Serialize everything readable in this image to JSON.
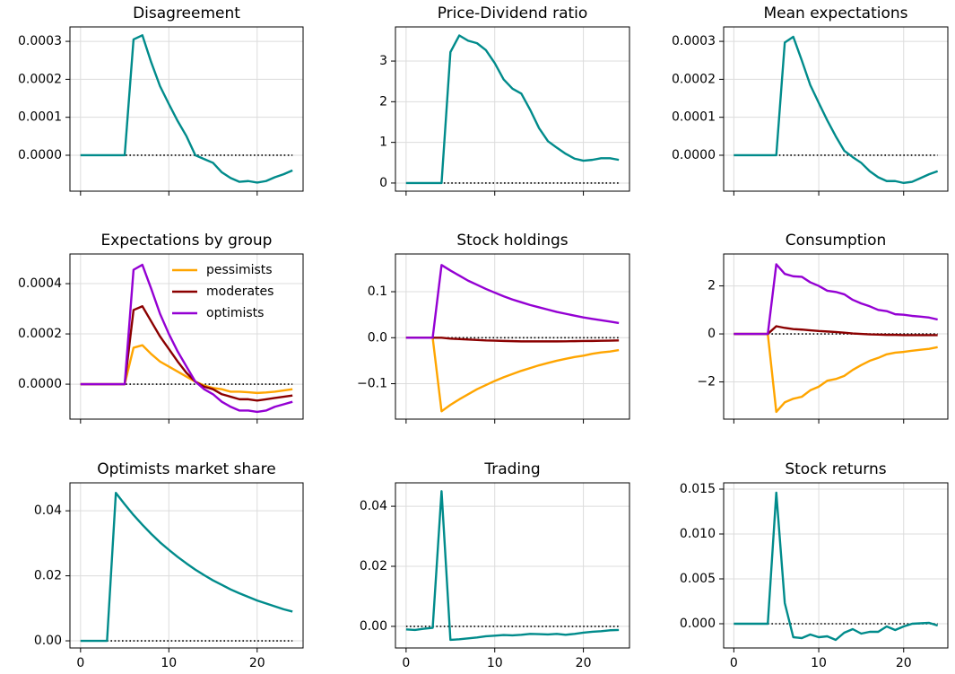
{
  "chart_data": [
    {
      "type": "line",
      "title": "Disagreement",
      "x": [
        0,
        1,
        2,
        3,
        4,
        5,
        6,
        7,
        8,
        9,
        10,
        11,
        12,
        13,
        14,
        15,
        16,
        17,
        18,
        19,
        20,
        21,
        22,
        23,
        24
      ],
      "values": [
        0,
        0,
        0,
        0,
        0,
        0,
        0.000305,
        0.000316,
        0.000245,
        0.000182,
        0.000135,
        9e-05,
        5e-05,
        0.0,
        -1e-05,
        -2e-05,
        -4.5e-05,
        -6e-05,
        -7e-05,
        -6.8e-05,
        -7.2e-05,
        -6.8e-05,
        -5.8e-05,
        -5e-05,
        -4e-05
      ],
      "color": "#008b8b",
      "xlim": [
        -1.2,
        25.2
      ],
      "xticks": [
        0,
        10,
        20
      ],
      "show_xtick_labels": false,
      "ylim": [
        -9.46e-05,
        0.000338
      ],
      "yticks": [
        {
          "value": 0,
          "label": "0.0000"
        },
        0.0001,
        0.0002,
        0.0003
      ],
      "grid": true,
      "zero_line": true
    },
    {
      "type": "line",
      "title": "Price-Dividend ratio",
      "x": [
        0,
        1,
        2,
        3,
        4,
        5,
        6,
        7,
        8,
        9,
        10,
        11,
        12,
        13,
        14,
        15,
        16,
        17,
        18,
        19,
        20,
        21,
        22,
        23,
        24
      ],
      "values": [
        0,
        0,
        0,
        0,
        0,
        3.22,
        3.63,
        3.5,
        3.44,
        3.27,
        2.95,
        2.55,
        2.32,
        2.2,
        1.8,
        1.35,
        1.03,
        0.87,
        0.72,
        0.6,
        0.55,
        0.57,
        0.61,
        0.61,
        0.57
      ],
      "color": "#008b8b",
      "xlim": [
        -1.2,
        25.2
      ],
      "xticks": [
        0,
        10,
        20
      ],
      "show_xtick_labels": false,
      "ylim": [
        -0.2,
        3.84
      ],
      "yticks": [
        0,
        1,
        2,
        3
      ],
      "grid": true,
      "zero_line": true
    },
    {
      "type": "line",
      "title": "Mean expectations",
      "x": [
        0,
        1,
        2,
        3,
        4,
        5,
        6,
        7,
        8,
        9,
        10,
        11,
        12,
        13,
        14,
        15,
        16,
        17,
        18,
        19,
        20,
        21,
        22,
        23,
        24
      ],
      "values": [
        0,
        0,
        0,
        0,
        0,
        0,
        0.000297,
        0.000312,
        0.00025,
        0.000185,
        0.000138,
        9.2e-05,
        5e-05,
        1.2e-05,
        -5e-06,
        -2e-05,
        -4.2e-05,
        -5.8e-05,
        -6.8e-05,
        -6.8e-05,
        -7.3e-05,
        -7e-05,
        -6e-05,
        -5e-05,
        -4.2e-05
      ],
      "color": "#008b8b",
      "xlim": [
        -1.2,
        25.2
      ],
      "xticks": [
        0,
        10,
        20
      ],
      "show_xtick_labels": false,
      "ylim": [
        -9.46e-05,
        0.000338
      ],
      "yticks": [
        {
          "value": 0,
          "label": "0.0000"
        },
        0.0001,
        0.0002,
        0.0003
      ],
      "grid": true,
      "zero_line": true
    },
    {
      "type": "line",
      "title": "Expectations by group",
      "x": [
        0,
        1,
        2,
        3,
        4,
        5,
        6,
        7,
        8,
        9,
        10,
        11,
        12,
        13,
        14,
        15,
        16,
        17,
        18,
        19,
        20,
        21,
        22,
        23,
        24
      ],
      "series": [
        {
          "name": "pessimists",
          "color": "#ffa500",
          "values": [
            0,
            0,
            0,
            0,
            0,
            0,
            0.000145,
            0.000155,
            0.00012,
            9e-05,
            7e-05,
            5e-05,
            3e-05,
            1e-05,
            -5e-06,
            -1.5e-05,
            -2e-05,
            -3e-05,
            -3e-05,
            -3.2e-05,
            -3.5e-05,
            -3.3e-05,
            -3e-05,
            -2.5e-05,
            -2e-05
          ]
        },
        {
          "name": "moderates",
          "color": "#8b0000",
          "values": [
            0,
            0,
            0,
            0,
            0,
            0,
            0.000295,
            0.00031,
            0.00025,
            0.00019,
            0.00014,
            9e-05,
            4.5e-05,
            1e-05,
            -1e-05,
            -2e-05,
            -4e-05,
            -5e-05,
            -6e-05,
            -6e-05,
            -6.5e-05,
            -6e-05,
            -5.5e-05,
            -5e-05,
            -4.5e-05
          ]
        },
        {
          "name": "optimists",
          "color": "#9400d3",
          "values": [
            0,
            0,
            0,
            0,
            0,
            0,
            0.000455,
            0.000475,
            0.00038,
            0.00028,
            0.0002,
            0.00013,
            7e-05,
            1e-05,
            -2e-05,
            -4e-05,
            -7e-05,
            -9e-05,
            -0.000105,
            -0.000105,
            -0.00011,
            -0.000105,
            -9e-05,
            -8e-05,
            -7e-05
          ]
        }
      ],
      "legend": "upper right",
      "xlim": [
        -1.2,
        25.2
      ],
      "xticks": [
        0,
        10,
        20
      ],
      "show_xtick_labels": false,
      "ylim": [
        -0.000139,
        0.000518
      ],
      "yticks": [
        {
          "value": 0,
          "label": "0.0000"
        },
        0.0002,
        0.0004
      ],
      "grid": true,
      "zero_line": true
    },
    {
      "type": "line",
      "title": "Stock holdings",
      "x": [
        0,
        1,
        2,
        3,
        4,
        5,
        6,
        7,
        8,
        9,
        10,
        11,
        12,
        13,
        14,
        15,
        16,
        17,
        18,
        19,
        20,
        21,
        22,
        23,
        24
      ],
      "series": [
        {
          "color": "#ffa500",
          "values": [
            0,
            0,
            0,
            0,
            -0.16,
            -0.146,
            -0.134,
            -0.123,
            -0.112,
            -0.103,
            -0.094,
            -0.086,
            -0.079,
            -0.072,
            -0.066,
            -0.06,
            -0.055,
            -0.05,
            -0.046,
            -0.042,
            -0.039,
            -0.035,
            -0.032,
            -0.03,
            -0.027
          ]
        },
        {
          "color": "#8b0000",
          "values": [
            0,
            0,
            0,
            0,
            0,
            -0.002,
            -0.003,
            -0.004,
            -0.005,
            -0.006,
            -0.0065,
            -0.007,
            -0.0075,
            -0.008,
            -0.008,
            -0.008,
            -0.008,
            -0.008,
            -0.0078,
            -0.0075,
            -0.0072,
            -0.007,
            -0.0067,
            -0.0064,
            -0.006
          ]
        },
        {
          "color": "#9400d3",
          "values": [
            0,
            0,
            0,
            0,
            0.158,
            0.146,
            0.135,
            0.124,
            0.115,
            0.106,
            0.098,
            0.09,
            0.083,
            0.077,
            0.071,
            0.066,
            0.061,
            0.056,
            0.052,
            0.048,
            0.044,
            0.041,
            0.038,
            0.035,
            0.032
          ]
        }
      ],
      "xlim": [
        -1.2,
        25.2
      ],
      "xticks": [
        0,
        10,
        20
      ],
      "show_xtick_labels": false,
      "ylim": [
        -0.177,
        0.182
      ],
      "yticks": [
        {
          "value": -0.1,
          "label": "−0.1"
        },
        {
          "value": 0,
          "label": "0.0"
        },
        0.1
      ],
      "grid": true,
      "zero_line": true
    },
    {
      "type": "line",
      "title": "Consumption",
      "x": [
        0,
        1,
        2,
        3,
        4,
        5,
        6,
        7,
        8,
        9,
        10,
        11,
        12,
        13,
        14,
        15,
        16,
        17,
        18,
        19,
        20,
        21,
        22,
        23,
        24
      ],
      "series": [
        {
          "color": "#ffa500",
          "values": [
            0,
            0,
            0,
            0,
            0,
            -3.25,
            -2.85,
            -2.7,
            -2.62,
            -2.35,
            -2.2,
            -1.95,
            -1.88,
            -1.75,
            -1.5,
            -1.3,
            -1.12,
            -1.0,
            -0.85,
            -0.78,
            -0.75,
            -0.7,
            -0.66,
            -0.62,
            -0.55
          ]
        },
        {
          "color": "#8b0000",
          "values": [
            0,
            0,
            0,
            0,
            0,
            0.32,
            0.25,
            0.2,
            0.18,
            0.15,
            0.12,
            0.1,
            0.08,
            0.05,
            0.02,
            0,
            -0.02,
            -0.03,
            -0.04,
            -0.04,
            -0.05,
            -0.05,
            -0.05,
            -0.05,
            -0.05
          ]
        },
        {
          "color": "#9400d3",
          "values": [
            0,
            0,
            0,
            0,
            0,
            2.9,
            2.5,
            2.4,
            2.38,
            2.15,
            2.0,
            1.8,
            1.75,
            1.65,
            1.42,
            1.27,
            1.15,
            1.0,
            0.95,
            0.82,
            0.8,
            0.75,
            0.72,
            0.68,
            0.6
          ]
        }
      ],
      "xlim": [
        -1.2,
        25.2
      ],
      "xticks": [
        0,
        10,
        20
      ],
      "show_xtick_labels": false,
      "ylim": [
        -3.55,
        3.33
      ],
      "yticks": [
        {
          "value": -2,
          "label": "−2"
        },
        0,
        2
      ],
      "grid": true,
      "zero_line": true
    },
    {
      "type": "line",
      "title": "Optimists market share",
      "x": [
        0,
        1,
        2,
        3,
        4,
        5,
        6,
        7,
        8,
        9,
        10,
        11,
        12,
        13,
        14,
        15,
        16,
        17,
        18,
        19,
        20,
        21,
        22,
        23,
        24
      ],
      "values": [
        0,
        0,
        0,
        0,
        0.0455,
        0.042,
        0.0387,
        0.0357,
        0.0329,
        0.0303,
        0.028,
        0.0258,
        0.0238,
        0.0219,
        0.0202,
        0.0186,
        0.0172,
        0.0158,
        0.0146,
        0.0135,
        0.0124,
        0.0115,
        0.0106,
        0.0097,
        0.009
      ],
      "color": "#008b8b",
      "xlim": [
        -1.2,
        25.2
      ],
      "xticks": [
        0,
        10,
        20
      ],
      "show_xtick_labels": true,
      "ylim": [
        -0.0022,
        0.0486
      ],
      "yticks": [
        {
          "value": 0,
          "label": "0.00"
        },
        0.02,
        0.04
      ],
      "grid": true,
      "zero_line": true
    },
    {
      "type": "line",
      "title": "Trading",
      "x": [
        0,
        1,
        2,
        3,
        4,
        5,
        6,
        7,
        8,
        9,
        10,
        11,
        12,
        13,
        14,
        15,
        16,
        17,
        18,
        19,
        20,
        21,
        22,
        23,
        24
      ],
      "values": [
        -0.001,
        -0.0012,
        -0.0008,
        -0.0005,
        0.045,
        -0.0045,
        -0.0043,
        -0.004,
        -0.0037,
        -0.0033,
        -0.0031,
        -0.0029,
        -0.003,
        -0.0028,
        -0.0025,
        -0.0026,
        -0.0027,
        -0.0025,
        -0.0028,
        -0.0025,
        -0.0021,
        -0.0018,
        -0.0016,
        -0.0013,
        -0.0012
      ],
      "color": "#008b8b",
      "xlim": [
        -1.2,
        25.2
      ],
      "xticks": [
        0,
        10,
        20
      ],
      "show_xtick_labels": true,
      "ylim": [
        -0.0072,
        0.0478
      ],
      "yticks": [
        {
          "value": 0,
          "label": "0.00"
        },
        0.02,
        0.04
      ],
      "grid": true,
      "zero_line": true
    },
    {
      "type": "line",
      "title": "Stock returns",
      "x": [
        0,
        1,
        2,
        3,
        4,
        5,
        6,
        7,
        8,
        9,
        10,
        11,
        12,
        13,
        14,
        15,
        16,
        17,
        18,
        19,
        20,
        21,
        22,
        23,
        24
      ],
      "values": [
        0,
        0,
        0,
        0,
        0,
        0.0146,
        0.0023,
        -0.0015,
        -0.0016,
        -0.0012,
        -0.0015,
        -0.0014,
        -0.0018,
        -0.001,
        -0.0006,
        -0.0011,
        -0.0009,
        -0.0009,
        -0.0003,
        -0.0007,
        -0.0003,
        0,
        5e-05,
        0.0001,
        -0.0002
      ],
      "color": "#008b8b",
      "xlim": [
        -1.2,
        25.2
      ],
      "xticks": [
        0,
        10,
        20
      ],
      "show_xtick_labels": true,
      "ylim": [
        -0.0027,
        0.0157
      ],
      "yticks": [
        {
          "value": 0,
          "label": "0.000"
        },
        0.005,
        {
          "value": 0.01,
          "label": "0.010"
        },
        0.015
      ],
      "grid": true,
      "zero_line": true
    }
  ]
}
